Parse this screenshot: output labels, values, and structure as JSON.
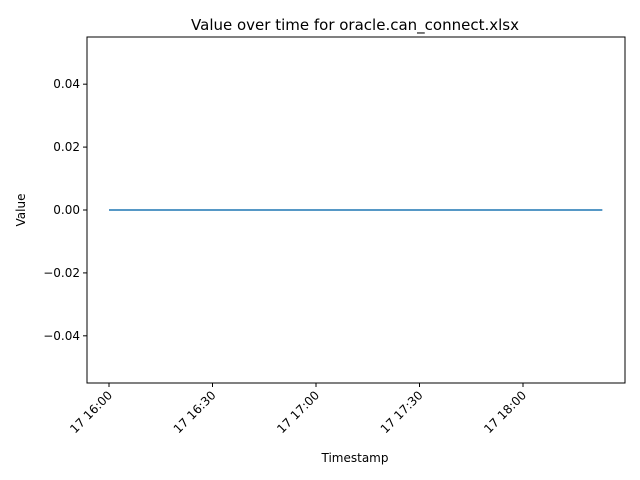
{
  "chart_data": {
    "type": "line",
    "title": "Value over time for oracle.can_connect.xlsx",
    "xlabel": "Timestamp",
    "ylabel": "Value",
    "x_ticks": [
      "17 16:00",
      "17 16:30",
      "17 17:00",
      "17 17:30",
      "17 18:00"
    ],
    "y_ticks": [
      "0.04",
      "0.02",
      "0.00",
      "−0.02",
      "−0.04"
    ],
    "ylim": [
      -0.055,
      0.055
    ],
    "grid": false,
    "legend": "none",
    "series_color": "#1f77b4",
    "series": [
      {
        "x": [
          "17 16:00",
          "17 18:23"
        ],
        "values": [
          0.0,
          0.0
        ]
      }
    ]
  }
}
